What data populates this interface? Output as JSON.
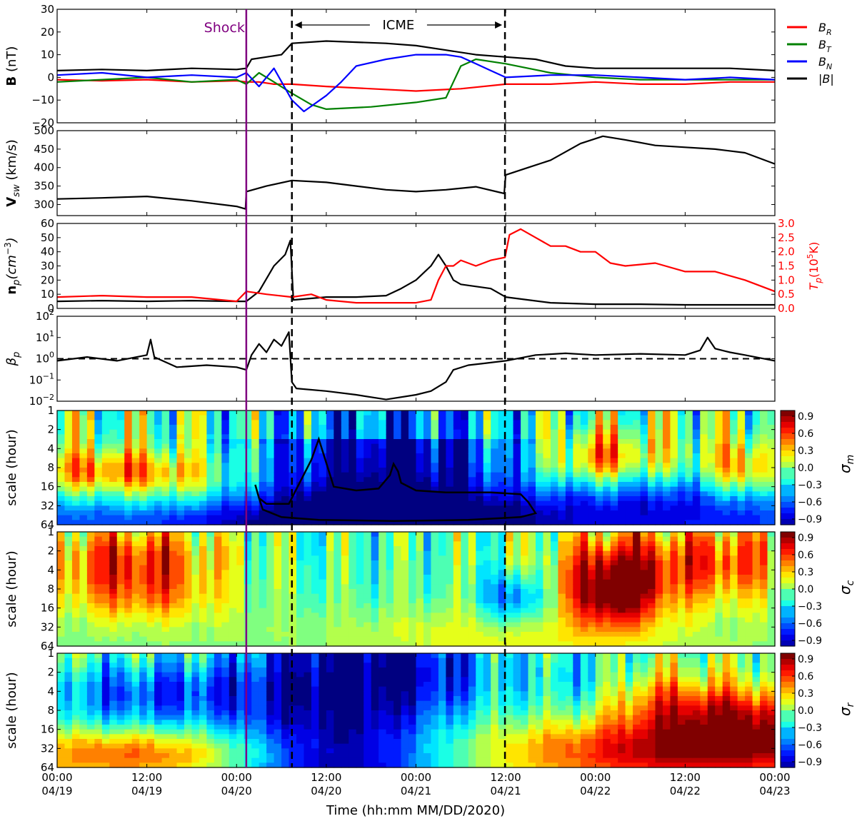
{
  "figure": {
    "xlabel": "Time (hh:mm MM/DD/2020)",
    "x_ticks": [
      {
        "hour": 0,
        "time": "00:00",
        "date": "04/19"
      },
      {
        "hour": 12,
        "time": "12:00",
        "date": "04/19"
      },
      {
        "hour": 24,
        "time": "00:00",
        "date": "04/20"
      },
      {
        "hour": 36,
        "time": "12:00",
        "date": "04/20"
      },
      {
        "hour": 48,
        "time": "00:00",
        "date": "04/21"
      },
      {
        "hour": 60,
        "time": "12:00",
        "date": "04/21"
      },
      {
        "hour": 72,
        "time": "00:00",
        "date": "04/22"
      },
      {
        "hour": 84,
        "time": "12:00",
        "date": "04/22"
      },
      {
        "hour": 96,
        "time": "00:00",
        "date": "04/23"
      }
    ],
    "x_range_hours": [
      0,
      96
    ],
    "shock": {
      "label": "Shock",
      "hour": 25.3,
      "color": "#800080"
    },
    "icme": {
      "label": "ICME",
      "start_hour": 31.4,
      "end_hour": 59.9
    }
  },
  "chart_data": [
    {
      "type": "line",
      "ylabel": "B (nT)",
      "ylim": [
        -20,
        30
      ],
      "yticks": [
        "30",
        "20",
        "10",
        "0",
        "−10",
        "−20"
      ],
      "legend_position": "right",
      "series": [
        {
          "name": "B_R",
          "legend": "B",
          "sub": "R",
          "color": "#ff0000",
          "x": [
            0,
            6,
            12,
            18,
            24,
            25.3,
            27,
            29,
            31.4,
            36,
            42,
            48,
            54,
            60,
            66,
            72,
            78,
            84,
            90,
            96
          ],
          "y": [
            -1,
            -1.5,
            -1,
            -2,
            -1.5,
            -2,
            -2,
            -3,
            -3,
            -4,
            -5,
            -6,
            -5,
            -3,
            -3,
            -2,
            -3,
            -3,
            -2,
            -2
          ]
        },
        {
          "name": "B_T",
          "legend": "B",
          "sub": "T",
          "color": "#008000",
          "x": [
            0,
            6,
            12,
            18,
            24,
            25.3,
            27,
            29,
            31.4,
            34,
            36,
            42,
            48,
            52,
            54,
            56,
            60,
            66,
            72,
            78,
            84,
            90,
            96
          ],
          "y": [
            -2,
            -1,
            0,
            -2,
            -1,
            -3,
            2,
            -2,
            -7,
            -12,
            -14,
            -13,
            -11,
            -9,
            5,
            8,
            6,
            2,
            0,
            -1,
            -1,
            -1,
            -1
          ]
        },
        {
          "name": "B_N",
          "legend": "B",
          "sub": "N",
          "color": "#0000ff",
          "x": [
            0,
            6,
            12,
            18,
            24,
            25.3,
            27,
            29,
            31.4,
            33,
            36,
            38,
            40,
            44,
            48,
            52,
            54,
            56,
            58,
            60,
            66,
            72,
            78,
            84,
            90,
            96
          ],
          "y": [
            1,
            2,
            0,
            1,
            0,
            2,
            -4,
            4,
            -10,
            -15,
            -8,
            -2,
            5,
            8,
            10,
            10,
            9,
            6,
            3,
            0,
            1,
            1,
            0,
            -1,
            0,
            -1
          ]
        },
        {
          "name": "|B|",
          "legend": "|B|",
          "sub": "",
          "color": "#000000",
          "x": [
            0,
            6,
            12,
            18,
            24,
            25.3,
            26,
            28,
            30,
            31.4,
            36,
            40,
            44,
            48,
            52,
            56,
            60,
            64,
            68,
            72,
            78,
            84,
            90,
            96
          ],
          "y": [
            3,
            3.5,
            3,
            4,
            3.5,
            4,
            8,
            9,
            10,
            15,
            16,
            15.5,
            15,
            14,
            12,
            10,
            9,
            8,
            5,
            4,
            4,
            4,
            4,
            3
          ]
        }
      ]
    },
    {
      "type": "line",
      "ylabel": "V_sw (km/s)",
      "ylim": [
        270,
        500
      ],
      "yticks": [
        "500",
        "450",
        "400",
        "350",
        "300"
      ],
      "series": [
        {
          "name": "V_sw",
          "color": "#000000",
          "x": [
            0,
            6,
            12,
            18,
            24,
            25.2,
            25.3,
            28,
            31.4,
            36,
            40,
            44,
            48,
            52,
            56,
            59.8,
            60,
            63,
            66,
            70,
            73,
            76,
            80,
            84,
            88,
            92,
            96
          ],
          "y": [
            315,
            318,
            322,
            310,
            295,
            288,
            335,
            350,
            365,
            360,
            350,
            340,
            335,
            340,
            348,
            330,
            380,
            400,
            420,
            465,
            485,
            475,
            460,
            455,
            450,
            440,
            410
          ]
        }
      ]
    },
    {
      "type": "line",
      "ylabel": "n_p (cm^-3)",
      "ylim": [
        0,
        60
      ],
      "yticks": [
        "60",
        "50",
        "40",
        "30",
        "20",
        "10",
        "0"
      ],
      "ylabel_right": "T_p (10^5 K)",
      "ylim_right": [
        0,
        3
      ],
      "yticks_right": [
        "3.0",
        "2.5",
        "2.0",
        "1.5",
        "1.0",
        "0.5",
        "0.0"
      ],
      "right_axis_color": "#ff0000",
      "series": [
        {
          "name": "n_p",
          "axis": "left",
          "color": "#000000",
          "x": [
            0,
            6,
            12,
            18,
            24,
            25.3,
            27,
            29,
            30.5,
            31.2,
            31.6,
            36,
            40,
            44,
            46,
            48,
            50,
            51,
            52,
            53,
            54,
            58,
            60,
            66,
            72,
            78,
            84,
            90,
            96
          ],
          "y": [
            5,
            5.5,
            5,
            5.5,
            5,
            5,
            12,
            30,
            38,
            48,
            6,
            8,
            8,
            9,
            14,
            20,
            30,
            38,
            30,
            20,
            17,
            14,
            8,
            4,
            3,
            3,
            2.5,
            2.5,
            2.5
          ]
        },
        {
          "name": "T_p",
          "axis": "right",
          "color": "#ff0000",
          "x": [
            0,
            6,
            12,
            18,
            24,
            25.3,
            28,
            31.4,
            34,
            36,
            40,
            44,
            48,
            50,
            51,
            52,
            53,
            54,
            56,
            58,
            59.9,
            60.5,
            62,
            64,
            66,
            68,
            70,
            72,
            74,
            76,
            80,
            84,
            88,
            92,
            96
          ],
          "y": [
            0.4,
            0.45,
            0.4,
            0.4,
            0.25,
            0.6,
            0.5,
            0.4,
            0.5,
            0.3,
            0.2,
            0.2,
            0.2,
            0.3,
            1.0,
            1.5,
            1.5,
            1.7,
            1.5,
            1.7,
            1.8,
            2.6,
            2.8,
            2.5,
            2.2,
            2.2,
            2.0,
            2.0,
            1.6,
            1.5,
            1.6,
            1.3,
            1.3,
            1.0,
            0.6
          ]
        }
      ]
    },
    {
      "type": "line",
      "ylabel": "β_p",
      "yscale": "log",
      "ylim": [
        0.01,
        100
      ],
      "yticks": [
        "10^2",
        "10^1",
        "10^0",
        "10^-1",
        "10^-2"
      ],
      "reference_line": {
        "y": 1,
        "style": "dashed"
      },
      "series": [
        {
          "name": "β_p",
          "color": "#000000",
          "x": [
            0,
            4,
            8,
            12,
            12.5,
            13,
            16,
            20,
            24,
            25.3,
            26,
            27,
            28,
            29,
            30,
            31,
            31.4,
            32,
            36,
            40,
            44,
            48,
            50,
            52,
            53,
            55,
            57,
            60,
            64,
            68,
            72,
            78,
            84,
            86,
            87,
            88,
            90,
            92,
            96
          ],
          "y": [
            0.8,
            1.2,
            0.8,
            1.5,
            8,
            1.2,
            0.4,
            0.5,
            0.4,
            0.3,
            1.5,
            5,
            2,
            8,
            4,
            18,
            0.08,
            0.04,
            0.03,
            0.02,
            0.012,
            0.02,
            0.03,
            0.08,
            0.3,
            0.5,
            0.6,
            0.8,
            1.5,
            1.8,
            1.5,
            1.7,
            1.5,
            2.5,
            10,
            3,
            2,
            1.5,
            0.8
          ]
        }
      ]
    },
    {
      "type": "heatmap",
      "ylabel": "scale (hour)",
      "colorbar_label": "σ_m",
      "yscale": "log",
      "ylim": [
        1,
        64
      ],
      "yticks": [
        "1",
        "2",
        "4",
        "8",
        "16",
        "32",
        "64"
      ],
      "colorbar_ticks": [
        "0.9",
        "0.6",
        "0.3",
        "0.0",
        "−0.3",
        "−0.6",
        "−0.9"
      ],
      "clim": [
        -1,
        1
      ],
      "description": "Magnetic helicity spectrum; strongly negative (blue) region across the ICME, enclosed by a black significance contour from ~27 h to ~65 h at scales 4–64 h."
    },
    {
      "type": "heatmap",
      "ylabel": "scale (hour)",
      "colorbar_label": "σ_c",
      "yscale": "log",
      "ylim": [
        1,
        64
      ],
      "yticks": [
        "1",
        "2",
        "4",
        "8",
        "16",
        "32",
        "64"
      ],
      "colorbar_ticks": [
        "0.9",
        "0.6",
        "0.3",
        "0.0",
        "−0.3",
        "−0.6",
        "−0.9"
      ],
      "clim": [
        -1,
        1
      ],
      "description": "Cross-helicity spectrum; positive before the shock and strongly positive (dark red) after 04/21 18:00."
    },
    {
      "type": "heatmap",
      "ylabel": "scale (hour)",
      "colorbar_label": "σ_r",
      "yscale": "log",
      "ylim": [
        1,
        64
      ],
      "yticks": [
        "1",
        "2",
        "4",
        "8",
        "16",
        "32",
        "64"
      ],
      "colorbar_ticks": [
        "0.9",
        "0.6",
        "0.3",
        "0.0",
        "−0.3",
        "−0.6",
        "−0.9"
      ],
      "clim": [
        -1,
        1
      ],
      "description": "Residual energy spectrum; strongly negative inside the ICME, strongly positive (red) at large scales after 04/21 12:00."
    }
  ]
}
